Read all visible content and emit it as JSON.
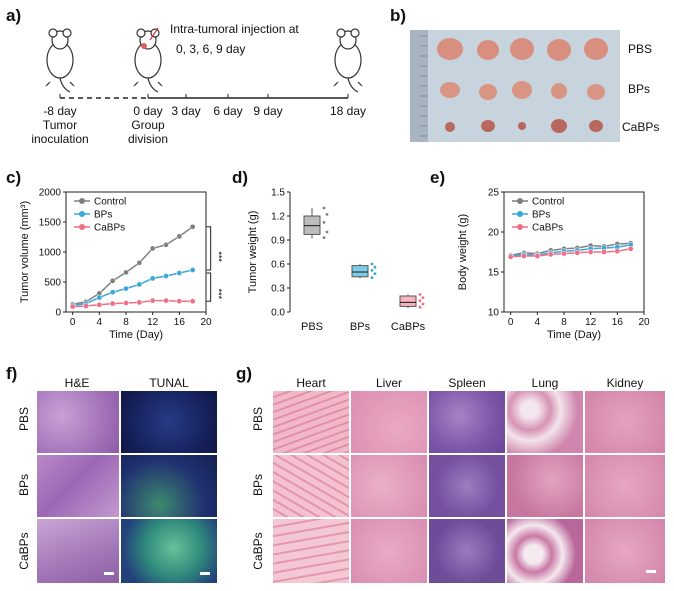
{
  "panels": {
    "a": {
      "label": "a)",
      "injection_line1": "Intra-tumoral injection at",
      "injection_line2": "0, 3, 6, 9 day",
      "timeline": [
        {
          "tick": "-8 day",
          "note1": "Tumor",
          "note2": "inoculation"
        },
        {
          "tick": "0 day",
          "note1": "Group",
          "note2": "division"
        },
        {
          "tick": "3 day",
          "note1": "",
          "note2": ""
        },
        {
          "tick": "6 day",
          "note1": "",
          "note2": ""
        },
        {
          "tick": "9 day",
          "note1": "",
          "note2": ""
        },
        {
          "tick": "18 day",
          "note1": "",
          "note2": ""
        }
      ]
    },
    "b": {
      "label": "b)",
      "rows": [
        "PBS",
        "BPs",
        "CaBPs"
      ]
    },
    "c": {
      "label": "c)"
    },
    "d": {
      "label": "d)"
    },
    "e": {
      "label": "e)"
    },
    "f": {
      "label": "f)",
      "columns": [
        "H&E",
        "TUNAL"
      ],
      "rows": [
        "PBS",
        "BPs",
        "CaBPs"
      ]
    },
    "g": {
      "label": "g)",
      "columns": [
        "Heart",
        "Liver",
        "Spleen",
        "Lung",
        "Kidney"
      ],
      "rows": [
        "PBS",
        "BPs",
        "CaBPs"
      ]
    }
  },
  "colors": {
    "control": "#808080",
    "bps": "#3aa8d8",
    "cabps": "#ef6f86",
    "he": "#b98ac4",
    "tunel": "#1d2a6a"
  },
  "chart_data": [
    {
      "id": "c",
      "type": "line",
      "xlabel": "Time (Day)",
      "ylabel": "Tumor volume (mm³)",
      "xlim": [
        -1,
        20
      ],
      "ylim": [
        0,
        2000
      ],
      "xticks": [
        0,
        4,
        8,
        12,
        16,
        20
      ],
      "yticks": [
        0,
        500,
        1000,
        1500,
        2000
      ],
      "x": [
        0,
        2,
        4,
        6,
        8,
        10,
        12,
        14,
        16,
        18
      ],
      "series": [
        {
          "name": "Control",
          "values": [
            130,
            170,
            310,
            520,
            660,
            820,
            1060,
            1120,
            1260,
            1420
          ]
        },
        {
          "name": "BPs",
          "values": [
            110,
            140,
            240,
            330,
            390,
            460,
            560,
            600,
            650,
            700
          ]
        },
        {
          "name": "CaBPs",
          "values": [
            90,
            100,
            120,
            140,
            150,
            160,
            190,
            190,
            180,
            180
          ]
        }
      ],
      "significance": [
        "***",
        "***"
      ],
      "legend": "top-left"
    },
    {
      "id": "d",
      "type": "box",
      "ylabel": "Tumor weight (g)",
      "ylim": [
        0,
        1.5
      ],
      "yticks": [
        0.0,
        0.3,
        0.6,
        0.9,
        1.2,
        1.5
      ],
      "categories": [
        "PBS",
        "BPs",
        "CaBPs"
      ],
      "boxes": [
        {
          "min": 0.92,
          "q1": 0.97,
          "median": 1.08,
          "q3": 1.2,
          "max": 1.3,
          "points": [
            0.93,
            1.0,
            1.12,
            1.22,
            1.3
          ]
        },
        {
          "min": 0.42,
          "q1": 0.44,
          "median": 0.5,
          "q3": 0.58,
          "max": 0.6,
          "points": [
            0.43,
            0.48,
            0.52,
            0.56,
            0.6
          ]
        },
        {
          "min": 0.05,
          "q1": 0.07,
          "median": 0.12,
          "q3": 0.2,
          "max": 0.22,
          "points": [
            0.06,
            0.1,
            0.14,
            0.18,
            0.22
          ]
        }
      ]
    },
    {
      "id": "e",
      "type": "line",
      "xlabel": "Time (Day)",
      "ylabel": "Body weight (g)",
      "xlim": [
        -1,
        20
      ],
      "ylim": [
        10,
        25
      ],
      "xticks": [
        0,
        4,
        8,
        12,
        16,
        20
      ],
      "yticks": [
        10,
        15,
        20,
        25
      ],
      "x": [
        0,
        2,
        4,
        6,
        8,
        10,
        12,
        14,
        16,
        18
      ],
      "series": [
        {
          "name": "Control",
          "values": [
            17.1,
            17.4,
            17.3,
            17.7,
            17.9,
            18.0,
            18.3,
            18.2,
            18.5,
            18.6
          ]
        },
        {
          "name": "BPs",
          "values": [
            17.0,
            17.2,
            17.1,
            17.4,
            17.6,
            17.7,
            17.9,
            18.0,
            18.1,
            18.4
          ]
        },
        {
          "name": "CaBPs",
          "values": [
            16.9,
            17.0,
            17.0,
            17.2,
            17.3,
            17.4,
            17.5,
            17.5,
            17.6,
            17.9
          ]
        }
      ],
      "legend": "top-left"
    }
  ]
}
